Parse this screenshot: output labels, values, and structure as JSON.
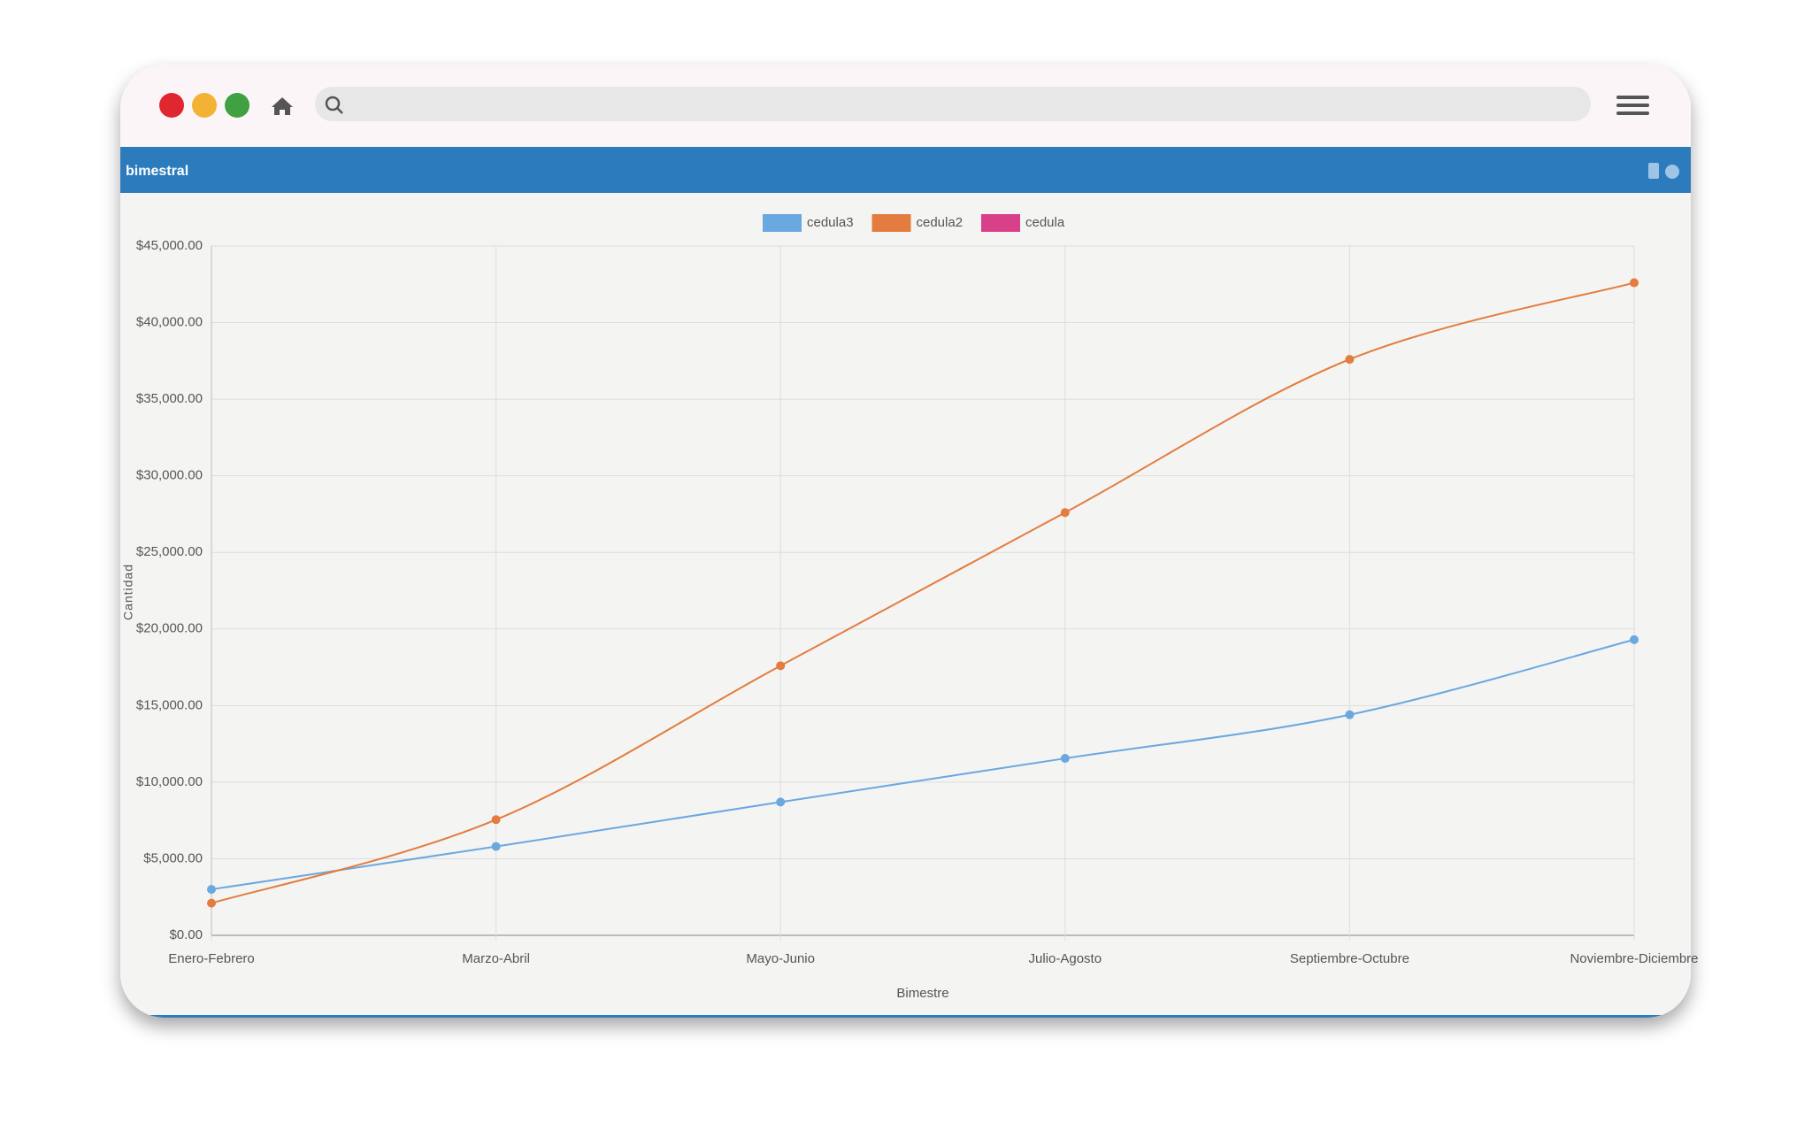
{
  "chart_data": {
    "type": "line",
    "title": "bimestral",
    "x_label": "Bimestre",
    "y_label": "Cantidad",
    "categories": [
      "Enero-Febrero",
      "Marzo-Abril",
      "Mayo-Junio",
      "Julio-Agosto",
      "Septiembre-Octubre",
      "Noviembre-Diciembre"
    ],
    "series": [
      {
        "name": "cedula3",
        "color": "#6aa8e0",
        "values": [
          3000,
          5800,
          8700,
          11550,
          14400,
          19300
        ]
      },
      {
        "name": "cedula2",
        "color": "#e37c3e",
        "values": [
          2100,
          7550,
          17600,
          27600,
          37600,
          42600
        ]
      },
      {
        "name": "cedula",
        "color": "#d9408a",
        "values": [
          null,
          null,
          null,
          null,
          null,
          null
        ]
      }
    ],
    "ylim": [
      0,
      45000
    ],
    "yticks": [
      {
        "value": 0,
        "label": "$0.00"
      },
      {
        "value": 5000,
        "label": "$5,000.00"
      },
      {
        "value": 10000,
        "label": "$10,000.00"
      },
      {
        "value": 15000,
        "label": "$15,000.00"
      },
      {
        "value": 20000,
        "label": "$20,000.00"
      },
      {
        "value": 25000,
        "label": "$25,000.00"
      },
      {
        "value": 30000,
        "label": "$30,000.00"
      },
      {
        "value": 35000,
        "label": "$35,000.00"
      },
      {
        "value": 40000,
        "label": "$40,000.00"
      },
      {
        "value": 45000,
        "label": "$45,000.00"
      }
    ],
    "grid": true,
    "legend": "top"
  }
}
